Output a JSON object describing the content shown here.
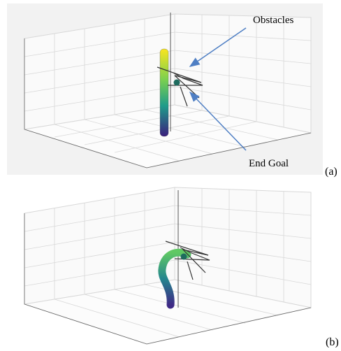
{
  "panels": [
    {
      "label": "(a)",
      "annotations": [
        "Obstacles",
        "End Goal"
      ]
    },
    {
      "label": "(b)"
    }
  ]
}
